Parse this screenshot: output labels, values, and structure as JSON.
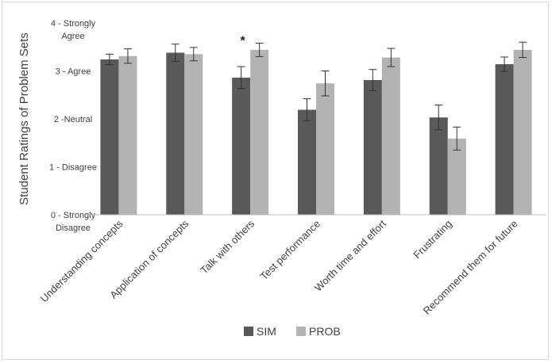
{
  "chart_data": {
    "type": "bar",
    "title": "",
    "xlabel": "",
    "ylabel": "Student Ratings of Problem Sets",
    "ylim": [
      0,
      4
    ],
    "y_ticks": [
      {
        "value": 0,
        "lines": [
          "0 - Strongly",
          "Disagree"
        ]
      },
      {
        "value": 1,
        "lines": [
          "1 - Disagree"
        ]
      },
      {
        "value": 2,
        "lines": [
          "2 -Neutral"
        ]
      },
      {
        "value": 3,
        "lines": [
          "3 - Agree"
        ]
      },
      {
        "value": 4,
        "lines": [
          "4 - Strongly",
          "Agree"
        ]
      }
    ],
    "categories": [
      "Understanding concepts",
      "Application of concepts",
      "Talk with others",
      "Test performance",
      "Worth time and effort",
      "Frustrating",
      "Recommend them for future"
    ],
    "series": [
      {
        "name": "SIM",
        "color": "#595959",
        "values": [
          3.24,
          3.38,
          2.86,
          2.19,
          2.81,
          2.03,
          3.14
        ],
        "errors": [
          0.11,
          0.18,
          0.23,
          0.23,
          0.22,
          0.26,
          0.15
        ]
      },
      {
        "name": "PROB",
        "color": "#b3b3b3",
        "values": [
          3.31,
          3.35,
          3.44,
          2.74,
          3.28,
          1.59,
          3.44
        ],
        "errors": [
          0.15,
          0.14,
          0.14,
          0.26,
          0.19,
          0.24,
          0.16
        ]
      }
    ],
    "annotations": [
      {
        "category": "Talk with others",
        "text": "*"
      }
    ],
    "legend_position": "bottom",
    "grid": false
  }
}
